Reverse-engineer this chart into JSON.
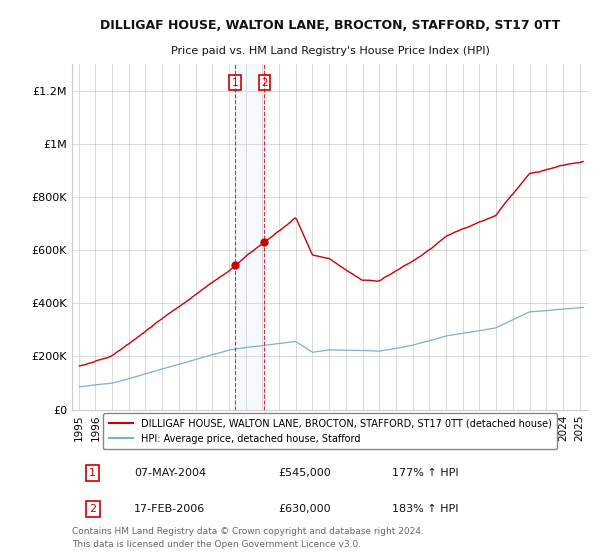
{
  "title": "DILLIGAF HOUSE, WALTON LANE, BROCTON, STAFFORD, ST17 0TT",
  "subtitle": "Price paid vs. HM Land Registry's House Price Index (HPI)",
  "hpi_color": "#7bafd4",
  "property_color": "#cc0000",
  "annotation_color": "#cc0000",
  "background_color": "#ffffff",
  "grid_color": "#cccccc",
  "legend_label_property": "DILLIGAF HOUSE, WALTON LANE, BROCTON, STAFFORD, ST17 0TT (detached house)",
  "legend_label_hpi": "HPI: Average price, detached house, Stafford",
  "transaction1_date": "07-MAY-2004",
  "transaction1_price": "£545,000",
  "transaction1_hpi": "177% ↑ HPI",
  "transaction2_date": "17-FEB-2006",
  "transaction2_price": "£630,000",
  "transaction2_hpi": "183% ↑ HPI",
  "footer_line1": "Contains HM Land Registry data © Crown copyright and database right 2024.",
  "footer_line2": "This data is licensed under the Open Government Licence v3.0.",
  "ylim": [
    0,
    1300000
  ],
  "yticks": [
    0,
    200000,
    400000,
    600000,
    800000,
    1000000,
    1200000
  ],
  "ytick_labels": [
    "£0",
    "£200K",
    "£400K",
    "£600K",
    "£800K",
    "£1M",
    "£1.2M"
  ],
  "t1_year": 2004,
  "t1_month": 5,
  "t1_price": 545000,
  "t2_year": 2006,
  "t2_month": 2,
  "t2_price": 630000
}
